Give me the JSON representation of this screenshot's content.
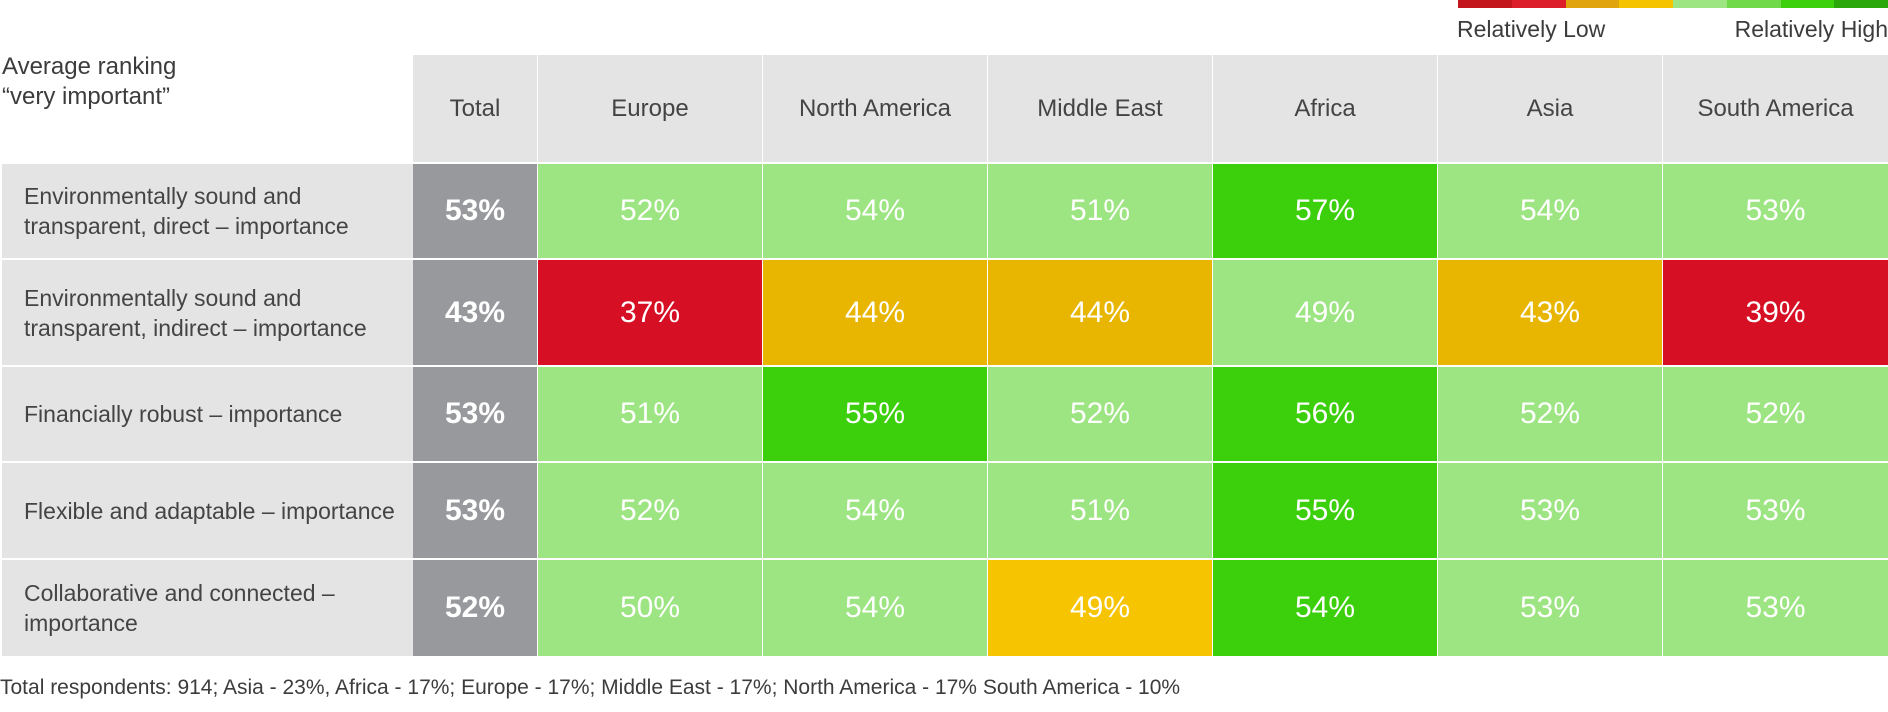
{
  "legend": {
    "low_label": "Relatively Low",
    "high_label": "Relatively High",
    "colors": [
      "#c3161c",
      "#dc1e2a",
      "#e0a50e",
      "#f6c300",
      "#9de582",
      "#6fd94a",
      "#3ccf0c",
      "#2aa70a"
    ]
  },
  "corner_label": [
    "Average ranking",
    "“very important”"
  ],
  "footnote": "Total respondents: 914; Asia - 23%, Africa - 17%; Europe - 17%; Middle East - 17%; North America - 17% South America - 10%",
  "colors": {
    "header_bg": "#e4e4e5",
    "total_bg": "#98999c",
    "red": "#d70f24",
    "amber": "#e8b500",
    "yellow": "#f6c400",
    "light_green": "#9de582",
    "green": "#3ccf0c"
  },
  "chart_data": {
    "type": "heatmap",
    "unit": "%",
    "columns": [
      "Total",
      "Europe",
      "North America",
      "Middle East",
      "Africa",
      "Asia",
      "South America"
    ],
    "rows": [
      {
        "label": "Environmentally sound and transparent, direct – importance",
        "values": [
          53,
          52,
          54,
          51,
          57,
          54,
          53
        ],
        "levels": [
          "total",
          "light_green",
          "light_green",
          "light_green",
          "green",
          "light_green",
          "light_green"
        ]
      },
      {
        "label": "Environmentally sound and transparent, indirect – importance",
        "values": [
          43,
          37,
          44,
          44,
          49,
          43,
          39
        ],
        "levels": [
          "total",
          "red",
          "amber",
          "amber",
          "light_green",
          "amber",
          "red"
        ]
      },
      {
        "label": "Financially robust – importance",
        "values": [
          53,
          51,
          55,
          52,
          56,
          52,
          52
        ],
        "levels": [
          "total",
          "light_green",
          "green",
          "light_green",
          "green",
          "light_green",
          "light_green"
        ]
      },
      {
        "label": "Flexible and adaptable – importance",
        "values": [
          53,
          52,
          54,
          51,
          55,
          53,
          53
        ],
        "levels": [
          "total",
          "light_green",
          "light_green",
          "light_green",
          "green",
          "light_green",
          "light_green"
        ]
      },
      {
        "label": "Collaborative and connected – importance",
        "values": [
          52,
          50,
          54,
          49,
          54,
          53,
          53
        ],
        "levels": [
          "total",
          "light_green",
          "light_green",
          "yellow",
          "green",
          "light_green",
          "light_green"
        ]
      }
    ]
  }
}
